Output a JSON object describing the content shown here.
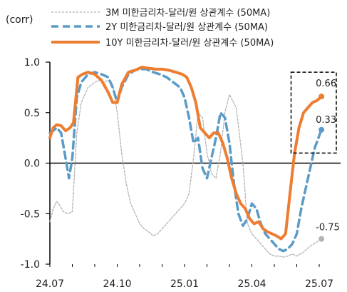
{
  "chart_data": {
    "type": "line",
    "ylabel": "(corr)",
    "ylim": [
      -1.0,
      1.0
    ],
    "yticks": [
      1.0,
      0.5,
      0.0,
      -0.5,
      -1.0
    ],
    "ytick_labels": [
      "1.0",
      "0.5",
      "0.0",
      "-0.5",
      "-1.0"
    ],
    "xlim": [
      "2024-07",
      "2025-07"
    ],
    "xticks": [
      "2024-07",
      "2024-10",
      "2025-01",
      "2025-04",
      "2025-07"
    ],
    "xtick_labels": [
      "24.07",
      "24.10",
      "25.01",
      "25.04",
      "25.07"
    ],
    "legend_position": "top",
    "highlight_box": {
      "x_range": [
        "2025-06",
        "2025-07"
      ],
      "y_range": [
        0.1,
        0.9
      ],
      "style": "dashed"
    },
    "end_labels": [
      {
        "series": "10Y",
        "text": "0.66",
        "value": 0.66
      },
      {
        "series": "2Y",
        "text": "0.33",
        "value": 0.33
      },
      {
        "series": "3M",
        "text": "-0.75",
        "value": -0.75
      }
    ],
    "series": [
      {
        "key": "3M",
        "name": "3M 미한금리차-달러/원 상관계수 (50MA)",
        "color": "#b3b3b3",
        "style": "dotted",
        "x": [
          0,
          0.15,
          0.3,
          0.45,
          0.6,
          0.8,
          1,
          1.2,
          1.4,
          1.7,
          2,
          2.2,
          2.4,
          2.6,
          2.8,
          3,
          3.2,
          3.4,
          3.6,
          3.8,
          4,
          4.2,
          4.4,
          4.6,
          4.8,
          5,
          5.2,
          5.4,
          5.6,
          5.8,
          6,
          6.2,
          6.4,
          6.6,
          6.8,
          7,
          7.2,
          7.4,
          7.6,
          7.8,
          8,
          8.3,
          8.6,
          8.8,
          9,
          9.2,
          9.4,
          9.6,
          9.8,
          10,
          10.2,
          10.4,
          10.6,
          10.8,
          11,
          11.3,
          11.6,
          11.9,
          12.1
        ],
        "y": [
          -0.58,
          -0.45,
          -0.38,
          -0.42,
          -0.48,
          -0.5,
          -0.48,
          0.3,
          0.6,
          0.75,
          0.8,
          0.82,
          0.8,
          0.82,
          0.78,
          0.5,
          0.1,
          -0.2,
          -0.4,
          -0.5,
          -0.6,
          -0.65,
          -0.68,
          -0.72,
          -0.7,
          -0.65,
          -0.6,
          -0.55,
          -0.5,
          -0.45,
          -0.4,
          -0.3,
          0.05,
          0.5,
          0.45,
          0.1,
          -0.1,
          -0.15,
          0.1,
          0.5,
          0.68,
          0.55,
          0.0,
          -0.6,
          -0.7,
          -0.75,
          -0.8,
          -0.85,
          -0.9,
          -0.92,
          -0.92,
          -0.93,
          -0.92,
          -0.9,
          -0.92,
          -0.88,
          -0.82,
          -0.78,
          -0.75
        ]
      },
      {
        "key": "2Y",
        "name": "2Y 미한금리차-달러/원 상관계수 (50MA)",
        "color": "#5b9bc8",
        "style": "dashed",
        "x": [
          0,
          0.15,
          0.3,
          0.5,
          0.7,
          0.85,
          1,
          1.2,
          1.4,
          1.7,
          2,
          2.3,
          2.6,
          2.8,
          3,
          3.2,
          3.5,
          3.8,
          4,
          4.3,
          4.6,
          4.9,
          5.2,
          5.5,
          5.8,
          6,
          6.2,
          6.4,
          6.6,
          6.8,
          7,
          7.2,
          7.4,
          7.6,
          7.8,
          8,
          8.2,
          8.4,
          8.6,
          8.8,
          9,
          9.2,
          9.4,
          9.6,
          9.8,
          10,
          10.2,
          10.4,
          10.6,
          10.8,
          11,
          11.2,
          11.4,
          11.6,
          11.8,
          12.1
        ],
        "y": [
          0.3,
          0.32,
          0.35,
          0.3,
          0.05,
          -0.15,
          0.05,
          0.65,
          0.8,
          0.88,
          0.9,
          0.88,
          0.85,
          0.75,
          0.6,
          0.75,
          0.88,
          0.92,
          0.93,
          0.93,
          0.9,
          0.88,
          0.85,
          0.8,
          0.75,
          0.65,
          0.45,
          0.2,
          0.25,
          -0.05,
          -0.15,
          0.05,
          0.25,
          0.5,
          0.45,
          0.2,
          -0.2,
          -0.5,
          -0.62,
          -0.55,
          -0.4,
          -0.45,
          -0.6,
          -0.7,
          -0.75,
          -0.8,
          -0.85,
          -0.87,
          -0.85,
          -0.8,
          -0.7,
          -0.45,
          -0.25,
          -0.05,
          0.15,
          0.33
        ]
      },
      {
        "key": "10Y",
        "name": "10Y 미한금리차-달러/원 상관계수 (50MA)",
        "color": "#ed7d31",
        "style": "solid",
        "x": [
          0,
          0.15,
          0.3,
          0.5,
          0.7,
          0.9,
          1.05,
          1.25,
          1.45,
          1.7,
          2,
          2.3,
          2.6,
          2.8,
          3,
          3.2,
          3.5,
          3.8,
          4.1,
          4.4,
          4.7,
          5,
          5.3,
          5.6,
          5.9,
          6.1,
          6.3,
          6.5,
          6.7,
          6.9,
          7.1,
          7.3,
          7.5,
          7.7,
          7.9,
          8.1,
          8.3,
          8.5,
          8.7,
          8.9,
          9.1,
          9.3,
          9.5,
          9.7,
          9.9,
          10.1,
          10.3,
          10.5,
          10.7,
          10.9,
          11.1,
          11.3,
          11.5,
          11.7,
          11.9,
          12.1
        ],
        "y": [
          0.25,
          0.35,
          0.38,
          0.37,
          0.32,
          0.35,
          0.4,
          0.85,
          0.88,
          0.9,
          0.88,
          0.82,
          0.7,
          0.6,
          0.6,
          0.78,
          0.9,
          0.92,
          0.95,
          0.94,
          0.93,
          0.93,
          0.92,
          0.9,
          0.88,
          0.85,
          0.75,
          0.6,
          0.35,
          0.3,
          0.25,
          0.3,
          0.3,
          0.2,
          0.05,
          -0.15,
          -0.3,
          -0.4,
          -0.45,
          -0.55,
          -0.6,
          -0.58,
          -0.65,
          -0.68,
          -0.7,
          -0.72,
          -0.75,
          -0.7,
          -0.3,
          0.1,
          0.35,
          0.5,
          0.55,
          0.6,
          0.62,
          0.66
        ]
      }
    ]
  }
}
